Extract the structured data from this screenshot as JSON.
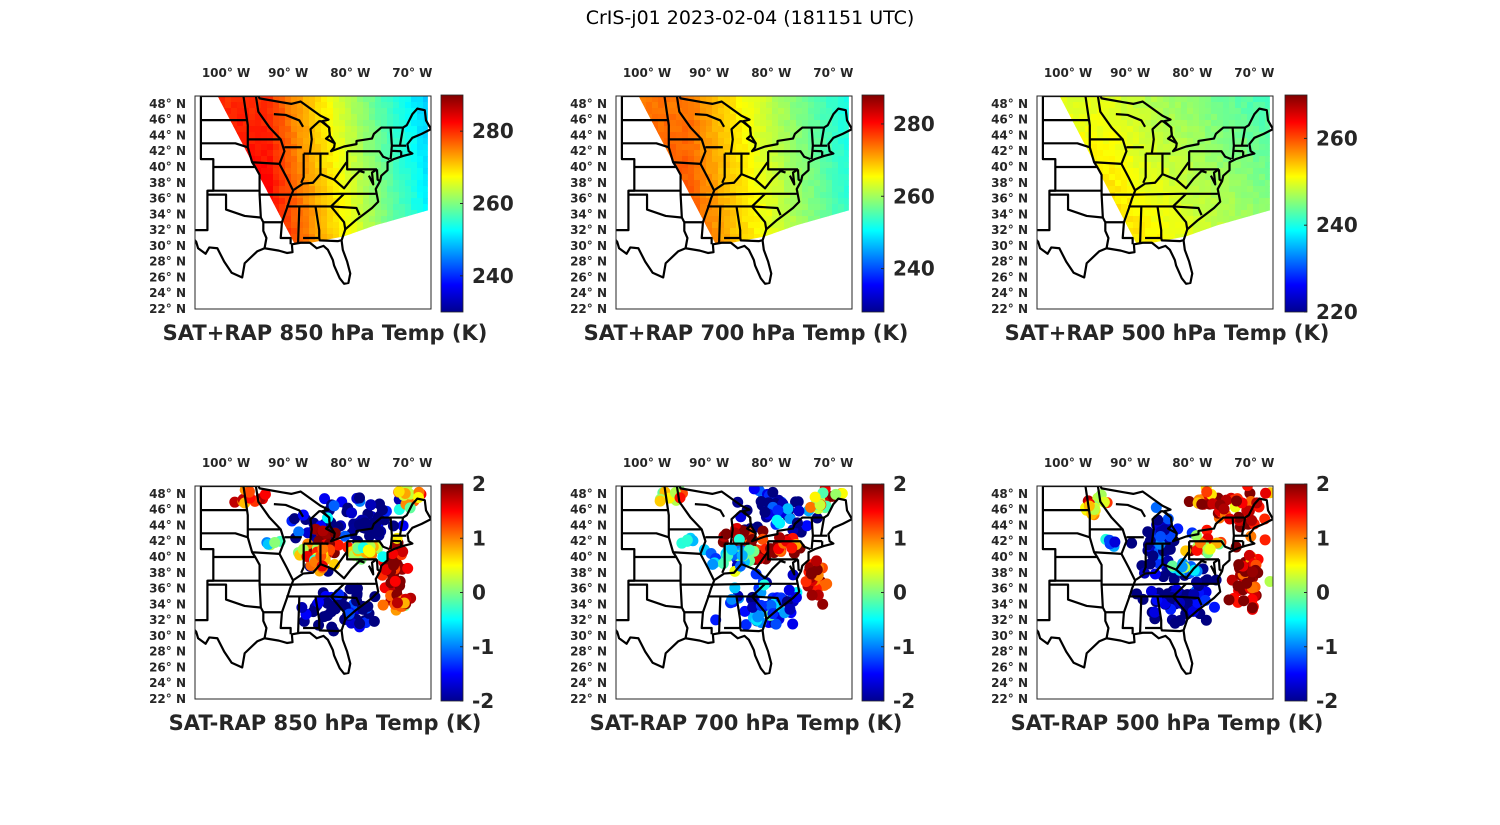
{
  "figure": {
    "suptitle": "CrIS-j01 2023-02-04 (181151 UTC)"
  },
  "chart_data": [
    {
      "type": "heatmap",
      "panel": "top-left",
      "title": "SAT+RAP 850 hPa Temp (K)",
      "xlabel": "",
      "ylabel": "",
      "lon_ticks": [
        "100° W",
        "90° W",
        "80° W",
        "70° W"
      ],
      "lon_tick_values": [
        -100,
        -90,
        -80,
        -70
      ],
      "lat_ticks": [
        "48° N",
        "46° N",
        "44° N",
        "42° N",
        "40° N",
        "38° N",
        "36° N",
        "34° N",
        "32° N",
        "30° N",
        "28° N",
        "26° N",
        "24° N",
        "22° N"
      ],
      "lat_tick_values": [
        48,
        46,
        44,
        42,
        40,
        38,
        36,
        34,
        32,
        30,
        28,
        26,
        24,
        22
      ],
      "lon_range": [
        -105,
        -67
      ],
      "lat_range": [
        22,
        49
      ],
      "colormap": "jet",
      "colorbar": {
        "ticks": [
          "240",
          "260",
          "280"
        ],
        "tick_values": [
          240,
          260,
          280
        ],
        "range": [
          230,
          290
        ]
      },
      "field": {
        "style": "swath",
        "west_value": 282,
        "east_value": 250,
        "south_value": 278,
        "north_value": 266,
        "description": "warm (~280 K) over Mississippi valley, cooling to ~250 K toward New England"
      }
    },
    {
      "type": "heatmap",
      "panel": "top-center",
      "title": "SAT+RAP 700 hPa Temp (K)",
      "xlabel": "",
      "ylabel": "",
      "lon_ticks": [
        "100° W",
        "90° W",
        "80° W",
        "70° W"
      ],
      "lon_tick_values": [
        -100,
        -90,
        -80,
        -70
      ],
      "lat_ticks": [
        "48° N",
        "46° N",
        "44° N",
        "42° N",
        "40° N",
        "38° N",
        "36° N",
        "34° N",
        "32° N",
        "30° N",
        "28° N",
        "26° N",
        "24° N",
        "22° N"
      ],
      "lat_tick_values": [
        48,
        46,
        44,
        42,
        40,
        38,
        36,
        34,
        32,
        30,
        28,
        26,
        24,
        22
      ],
      "lon_range": [
        -105,
        -67
      ],
      "lat_range": [
        22,
        49
      ],
      "colormap": "jet",
      "colorbar": {
        "ticks": [
          "240",
          "260",
          "280"
        ],
        "tick_values": [
          240,
          260,
          280
        ],
        "range": [
          228,
          288
        ]
      },
      "field": {
        "style": "swath",
        "west_value": 275,
        "east_value": 252,
        "south_value": 274,
        "north_value": 266,
        "description": "~273 K over central US, ~250 K over New England"
      }
    },
    {
      "type": "heatmap",
      "panel": "top-right",
      "title": "SAT+RAP 500 hPa Temp (K)",
      "xlabel": "",
      "ylabel": "",
      "lon_ticks": [
        "100° W",
        "90° W",
        "80° W",
        "70° W"
      ],
      "lon_tick_values": [
        -100,
        -90,
        -80,
        -70
      ],
      "lat_ticks": [
        "48° N",
        "46° N",
        "44° N",
        "42° N",
        "40° N",
        "38° N",
        "36° N",
        "34° N",
        "32° N",
        "30° N",
        "28° N",
        "26° N",
        "24° N",
        "22° N"
      ],
      "lat_tick_values": [
        48,
        46,
        44,
        42,
        40,
        38,
        36,
        34,
        32,
        30,
        28,
        26,
        24,
        22
      ],
      "lon_range": [
        -105,
        -67
      ],
      "lat_range": [
        22,
        49
      ],
      "colormap": "jet",
      "colorbar": {
        "ticks": [
          "220",
          "240",
          "260"
        ],
        "tick_values": [
          220,
          240,
          260
        ],
        "range": [
          220,
          270
        ]
      },
      "field": {
        "style": "swath",
        "west_value": 252,
        "east_value": 244,
        "south_value": 260,
        "north_value": 247,
        "description": "~258 K in southeast, ~245 K in northeast"
      }
    },
    {
      "type": "scatter",
      "panel": "bottom-left",
      "title": "SAT-RAP 850 hPa Temp (K)",
      "xlabel": "",
      "ylabel": "",
      "lon_ticks": [
        "100° W",
        "90° W",
        "80° W",
        "70° W"
      ],
      "lon_tick_values": [
        -100,
        -90,
        -80,
        -70
      ],
      "lat_ticks": [
        "48° N",
        "46° N",
        "44° N",
        "42° N",
        "40° N",
        "38° N",
        "36° N",
        "34° N",
        "32° N",
        "30° N",
        "28° N",
        "26° N",
        "24° N",
        "22° N"
      ],
      "lat_tick_values": [
        48,
        46,
        44,
        42,
        40,
        38,
        36,
        34,
        32,
        30,
        28,
        26,
        24,
        22
      ],
      "lon_range": [
        -105,
        -67
      ],
      "lat_range": [
        22,
        49
      ],
      "colormap": "jet",
      "colorbar": {
        "ticks": [
          "-2",
          "-1",
          "0",
          "1",
          "2"
        ],
        "tick_values": [
          -2,
          -1,
          0,
          1,
          2
        ],
        "range": [
          -2,
          2
        ]
      },
      "clusters": [
        {
          "lon": -81,
          "lat": 33.5,
          "value": -2,
          "spread": [
            5,
            2.5
          ],
          "count": 60
        },
        {
          "lon": -78,
          "lat": 44.5,
          "value": -2,
          "spread": [
            5,
            3
          ],
          "count": 60
        },
        {
          "lon": -85,
          "lat": 43,
          "value": -1.8,
          "spread": [
            3,
            3
          ],
          "count": 40
        },
        {
          "lon": -84,
          "lat": 41.5,
          "value": 1.9,
          "spread": [
            2.5,
            1.5
          ],
          "count": 35
        },
        {
          "lon": -85,
          "lat": 40,
          "value": 0.8,
          "spread": [
            2.5,
            1.5
          ],
          "count": 25
        },
        {
          "lon": -73,
          "lat": 38,
          "value": 2,
          "spread": [
            1.5,
            3.5
          ],
          "count": 40
        },
        {
          "lon": -72,
          "lat": 34,
          "value": 1.2,
          "spread": [
            2,
            0.8
          ],
          "count": 14
        },
        {
          "lon": -71,
          "lat": 48,
          "value": 0.8,
          "spread": [
            1.5,
            1
          ],
          "count": 12
        },
        {
          "lon": -96,
          "lat": 47.8,
          "value": 1.5,
          "spread": [
            2,
            0.8
          ],
          "count": 14
        },
        {
          "lon": -93,
          "lat": 42,
          "value": -0.5,
          "spread": [
            1,
            0.5
          ],
          "count": 5
        },
        {
          "lon": -78,
          "lat": 40.8,
          "value": 0.2,
          "spread": [
            3,
            1.2
          ],
          "count": 20
        }
      ]
    },
    {
      "type": "scatter",
      "panel": "bottom-center",
      "title": "SAT-RAP 700 hPa Temp (K)",
      "xlabel": "",
      "ylabel": "",
      "lon_ticks": [
        "100° W",
        "90° W",
        "80° W",
        "70° W"
      ],
      "lon_tick_values": [
        -100,
        -90,
        -80,
        -70
      ],
      "lat_ticks": [
        "48° N",
        "46° N",
        "44° N",
        "42° N",
        "40° N",
        "38° N",
        "36° N",
        "34° N",
        "32° N",
        "30° N",
        "28° N",
        "26° N",
        "24° N",
        "22° N"
      ],
      "lat_tick_values": [
        48,
        46,
        44,
        42,
        40,
        38,
        36,
        34,
        32,
        30,
        28,
        26,
        24,
        22
      ],
      "lon_range": [
        -105,
        -67
      ],
      "lat_range": [
        22,
        49
      ],
      "colormap": "jet",
      "colorbar": {
        "ticks": [
          "-2",
          "-1",
          "0",
          "1",
          "2"
        ],
        "tick_values": [
          -2,
          -1,
          0,
          1,
          2
        ],
        "range": [
          -2,
          2
        ]
      },
      "clusters": [
        {
          "lon": -81,
          "lat": 34,
          "value": -1.3,
          "spread": [
            5,
            2.5
          ],
          "count": 60
        },
        {
          "lon": -79,
          "lat": 46,
          "value": -1.8,
          "spread": [
            5,
            2.5
          ],
          "count": 50
        },
        {
          "lon": -84,
          "lat": 41.5,
          "value": 1.9,
          "spread": [
            3,
            2
          ],
          "count": 40
        },
        {
          "lon": -78,
          "lat": 41.5,
          "value": 2,
          "spread": [
            2,
            1
          ],
          "count": 20
        },
        {
          "lon": -73,
          "lat": 37,
          "value": 1.6,
          "spread": [
            2,
            2.5
          ],
          "count": 30
        },
        {
          "lon": -86,
          "lat": 40,
          "value": -0.5,
          "spread": [
            3,
            1.5
          ],
          "count": 30
        },
        {
          "lon": -72,
          "lat": 47,
          "value": 0.8,
          "spread": [
            2,
            1.5
          ],
          "count": 20
        },
        {
          "lon": -96,
          "lat": 47.8,
          "value": 0.6,
          "spread": [
            2,
            0.8
          ],
          "count": 12
        },
        {
          "lon": -93,
          "lat": 42,
          "value": -0.2,
          "spread": [
            1,
            0.5
          ],
          "count": 5
        }
      ]
    },
    {
      "type": "scatter",
      "panel": "bottom-right",
      "title": "SAT-RAP 500 hPa Temp (K)",
      "xlabel": "",
      "ylabel": "",
      "lon_ticks": [
        "100° W",
        "90° W",
        "80° W",
        "70° W"
      ],
      "lon_tick_values": [
        -100,
        -90,
        -80,
        -70
      ],
      "lat_ticks": [
        "48° N",
        "46° N",
        "44° N",
        "42° N",
        "40° N",
        "38° N",
        "36° N",
        "34° N",
        "32° N",
        "30° N",
        "28° N",
        "26° N",
        "24° N",
        "22° N"
      ],
      "lat_tick_values": [
        48,
        46,
        44,
        42,
        40,
        38,
        36,
        34,
        32,
        30,
        28,
        26,
        24,
        22
      ],
      "lon_range": [
        -105,
        -67
      ],
      "lat_range": [
        22,
        49
      ],
      "colormap": "jet",
      "colorbar": {
        "ticks": [
          "-2",
          "-1",
          "0",
          "1",
          "2"
        ],
        "tick_values": [
          -2,
          -1,
          0,
          1,
          2
        ],
        "range": [
          -2,
          2
        ]
      },
      "clusters": [
        {
          "lon": -82,
          "lat": 35,
          "value": -2,
          "spread": [
            4,
            3
          ],
          "count": 70
        },
        {
          "lon": -85,
          "lat": 42,
          "value": -1.8,
          "spread": [
            3,
            3
          ],
          "count": 50
        },
        {
          "lon": -74,
          "lat": 46.5,
          "value": 1.6,
          "spread": [
            5,
            2.5
          ],
          "count": 60
        },
        {
          "lon": -71,
          "lat": 37.5,
          "value": 1.8,
          "spread": [
            2.5,
            3
          ],
          "count": 50
        },
        {
          "lon": -78,
          "lat": 41.5,
          "value": 0.5,
          "spread": [
            2,
            1
          ],
          "count": 20
        },
        {
          "lon": -96,
          "lat": 46.5,
          "value": 0.4,
          "spread": [
            2.5,
            1.5
          ],
          "count": 15
        },
        {
          "lon": -93,
          "lat": 41.5,
          "value": -1.2,
          "spread": [
            1,
            0.8
          ],
          "count": 6
        },
        {
          "lon": -81,
          "lat": 38.5,
          "value": -0.8,
          "spread": [
            2,
            1
          ],
          "count": 15
        }
      ]
    }
  ]
}
